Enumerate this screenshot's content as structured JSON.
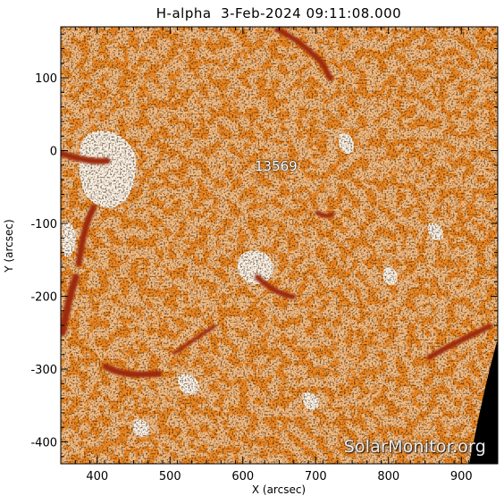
{
  "title": "H-alpha  3-Feb-2024 09:11:08.000",
  "axes": {
    "xlabel": "X (arcsec)",
    "ylabel": "Y (arcsec)",
    "xlim": [
      350,
      950
    ],
    "ylim": [
      -430,
      170
    ],
    "xticks": [
      400,
      500,
      600,
      700,
      800,
      900
    ],
    "yticks": [
      100,
      0,
      -100,
      -200,
      -300,
      -400
    ],
    "xtick_labels": [
      "400",
      "500",
      "600",
      "700",
      "800",
      "900"
    ],
    "ytick_labels": [
      "100",
      "0",
      "-100",
      "-200",
      "-300",
      "-400"
    ]
  },
  "annotations": {
    "region": "13569",
    "watermark": "SolarMonitor.org"
  },
  "colors": {
    "base_orange": "#f08a24",
    "bright": "#fff3e6",
    "dark_filament": "#9c2a0a",
    "black": "#000000"
  }
}
